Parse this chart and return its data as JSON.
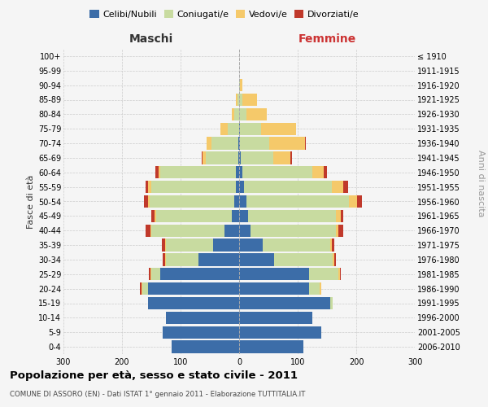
{
  "age_groups": [
    "0-4",
    "5-9",
    "10-14",
    "15-19",
    "20-24",
    "25-29",
    "30-34",
    "35-39",
    "40-44",
    "45-49",
    "50-54",
    "55-59",
    "60-64",
    "65-69",
    "70-74",
    "75-79",
    "80-84",
    "85-89",
    "90-94",
    "95-99",
    "100+"
  ],
  "birth_years": [
    "2006-2010",
    "2001-2005",
    "1996-2000",
    "1991-1995",
    "1986-1990",
    "1981-1985",
    "1976-1980",
    "1971-1975",
    "1966-1970",
    "1961-1965",
    "1956-1960",
    "1951-1955",
    "1946-1950",
    "1941-1945",
    "1936-1940",
    "1931-1935",
    "1926-1930",
    "1921-1925",
    "1916-1920",
    "1911-1915",
    "≤ 1910"
  ],
  "males": {
    "celibi": [
      115,
      130,
      125,
      155,
      155,
      135,
      70,
      45,
      25,
      12,
      8,
      5,
      5,
      2,
      2,
      0,
      0,
      0,
      0,
      0,
      0
    ],
    "coniugati": [
      0,
      0,
      0,
      0,
      10,
      15,
      55,
      80,
      125,
      130,
      145,
      145,
      130,
      55,
      45,
      20,
      8,
      3,
      0,
      0,
      0
    ],
    "vedovi": [
      0,
      0,
      0,
      0,
      2,
      2,
      2,
      2,
      2,
      2,
      3,
      5,
      3,
      5,
      8,
      12,
      5,
      2,
      0,
      0,
      0
    ],
    "divorziati": [
      0,
      0,
      0,
      0,
      2,
      2,
      3,
      5,
      8,
      6,
      6,
      5,
      5,
      2,
      0,
      0,
      0,
      0,
      0,
      0,
      0
    ]
  },
  "females": {
    "nubili": [
      110,
      140,
      125,
      155,
      120,
      120,
      60,
      40,
      20,
      15,
      12,
      8,
      5,
      3,
      2,
      2,
      0,
      0,
      0,
      0,
      0
    ],
    "coniugate": [
      0,
      0,
      0,
      5,
      18,
      50,
      100,
      115,
      145,
      150,
      175,
      150,
      120,
      55,
      50,
      35,
      12,
      5,
      2,
      0,
      0
    ],
    "vedove": [
      0,
      0,
      0,
      0,
      2,
      2,
      2,
      3,
      5,
      8,
      15,
      20,
      20,
      30,
      60,
      60,
      35,
      25,
      3,
      0,
      0
    ],
    "divorziate": [
      0,
      0,
      0,
      0,
      0,
      2,
      3,
      5,
      8,
      5,
      8,
      8,
      5,
      2,
      2,
      0,
      0,
      0,
      0,
      0,
      0
    ]
  },
  "colors": {
    "celibi_nubili": "#3c6da8",
    "coniugati": "#c8dba0",
    "vedovi": "#f5c96a",
    "divorziati": "#c0392b"
  },
  "title": "Popolazione per età, sesso e stato civile - 2011",
  "subtitle": "COMUNE DI ASSORO (EN) - Dati ISTAT 1° gennaio 2011 - Elaborazione TUTTITALIA.IT",
  "xlabel_left": "Maschi",
  "xlabel_right": "Femmine",
  "ylabel_left": "Fasce di età",
  "ylabel_right": "Anni di nascita",
  "xlim": 300,
  "background_color": "#f5f5f5",
  "grid_color": "#cccccc"
}
